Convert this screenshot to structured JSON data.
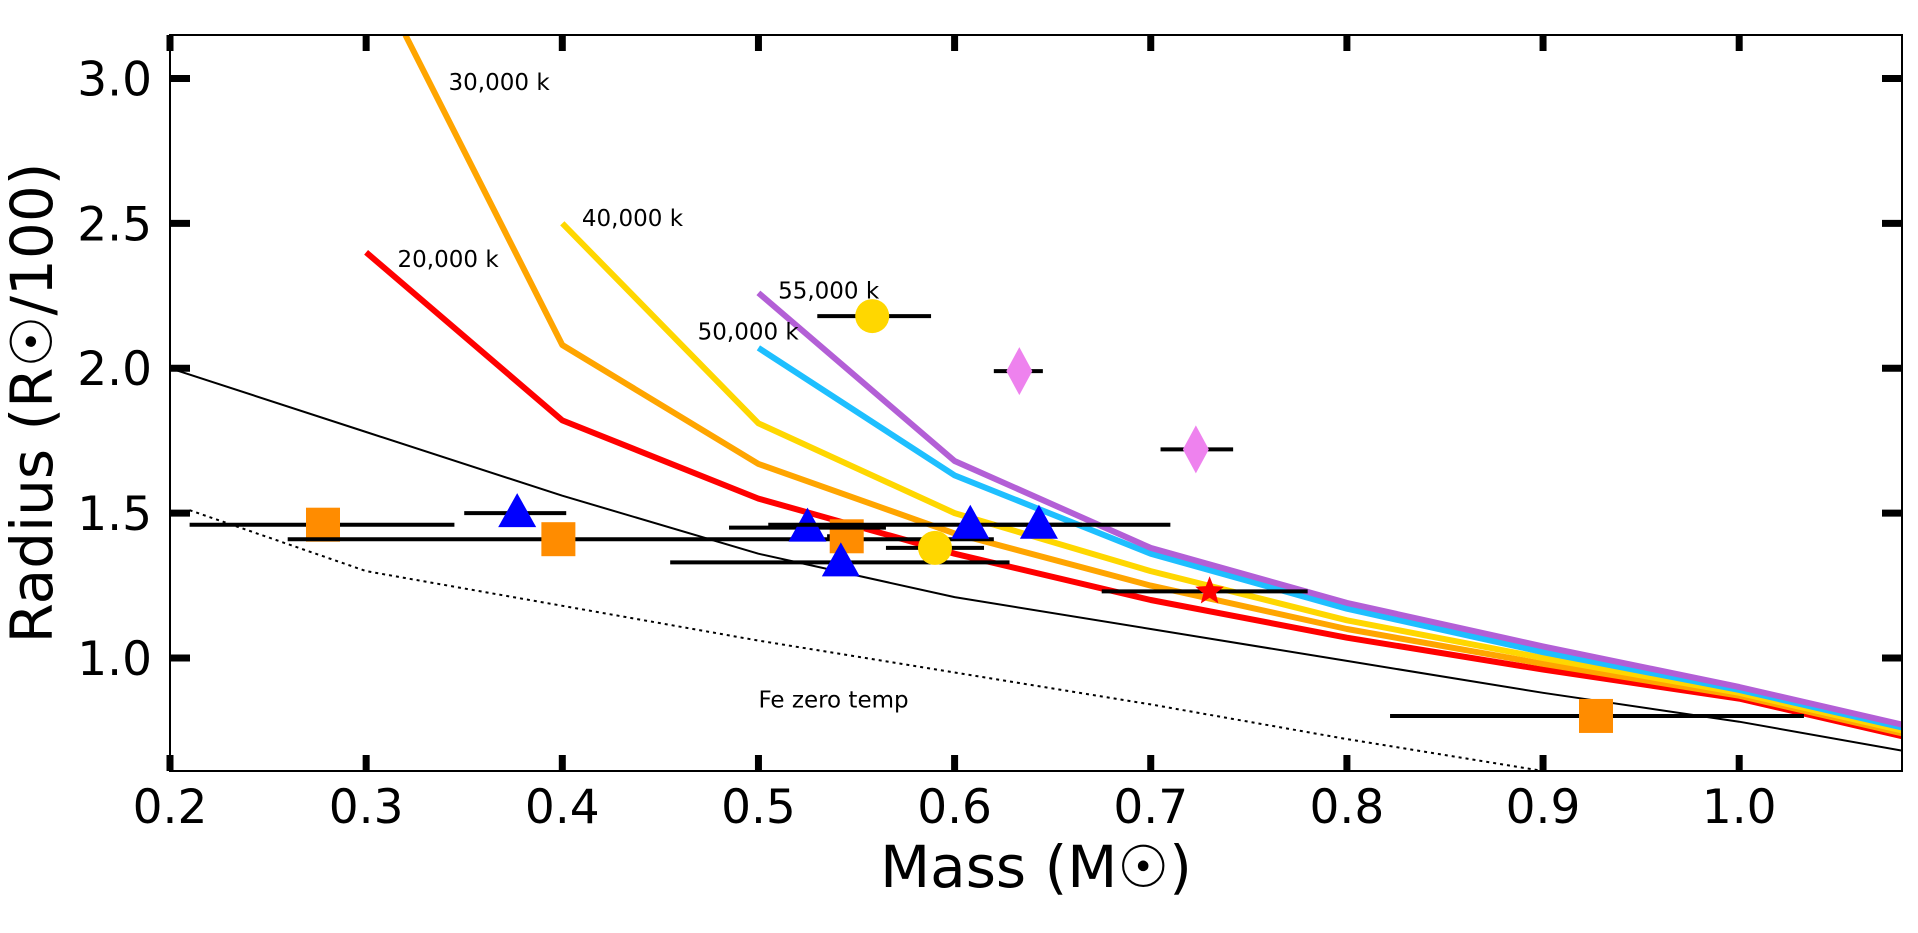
{
  "chart_data": {
    "type": "scatter",
    "xlabel": "Mass (M☉)",
    "ylabel": "Radius (R☉/100)",
    "xlim": [
      0.2,
      1.083
    ],
    "ylim": [
      0.61,
      3.15
    ],
    "x_ticks": [
      0.2,
      0.3,
      0.4,
      0.5,
      0.6,
      0.7,
      0.8,
      0.9,
      1.0
    ],
    "x_tick_labels": [
      "0.2",
      "0.3",
      "0.4",
      "0.5",
      "0.6",
      "0.7",
      "0.8",
      "0.9",
      "1.0"
    ],
    "y_ticks": [
      1.0,
      1.5,
      2.0,
      2.5,
      3.0
    ],
    "y_tick_labels": [
      "1.0",
      "1.5",
      "2.0",
      "2.5",
      "3.0"
    ],
    "grid": false,
    "curves": [
      {
        "name": "20,000 k",
        "color": "#ff0000",
        "width": 6,
        "dash": "",
        "x": [
          0.3,
          0.4,
          0.5,
          0.6,
          0.7,
          0.8,
          0.9,
          1.0,
          1.083
        ],
        "y": [
          2.4,
          1.82,
          1.55,
          1.36,
          1.2,
          1.07,
          0.96,
          0.86,
          0.73
        ]
      },
      {
        "name": "30,000 k",
        "color": "#ffa500",
        "width": 6,
        "dash": "",
        "x": [
          0.32,
          0.4,
          0.5,
          0.6,
          0.7,
          0.8,
          0.9,
          1.0,
          1.083
        ],
        "y": [
          3.15,
          2.08,
          1.67,
          1.43,
          1.25,
          1.1,
          0.98,
          0.87,
          0.74
        ]
      },
      {
        "name": "40,000 k",
        "color": "#ffd700",
        "width": 6,
        "dash": "",
        "x": [
          0.4,
          0.5,
          0.6,
          0.7,
          0.8,
          0.9,
          1.0,
          1.083
        ],
        "y": [
          2.5,
          1.81,
          1.5,
          1.3,
          1.13,
          1.0,
          0.88,
          0.75
        ]
      },
      {
        "name": "50,000 k",
        "color": "#1ebfff",
        "width": 6,
        "dash": "",
        "x": [
          0.5,
          0.6,
          0.7,
          0.8,
          0.9,
          1.0,
          1.083
        ],
        "y": [
          2.07,
          1.63,
          1.36,
          1.17,
          1.02,
          0.89,
          0.76
        ]
      },
      {
        "name": "55,000 k",
        "color": "#b35fd6",
        "width": 6,
        "dash": "",
        "x": [
          0.5,
          0.6,
          0.7,
          0.8,
          0.9,
          1.0,
          1.083
        ],
        "y": [
          2.26,
          1.68,
          1.38,
          1.19,
          1.04,
          0.9,
          0.77
        ]
      },
      {
        "name": "Fe zero temp",
        "color": "#000000",
        "width": 2,
        "dash": "3,4",
        "x": [
          0.21,
          0.3,
          0.4,
          0.5,
          0.6,
          0.7,
          0.8,
          0.9
        ],
        "y": [
          1.51,
          1.3,
          1.18,
          1.06,
          0.95,
          0.84,
          0.72,
          0.61
        ]
      },
      {
        "name": "zero temp",
        "color": "#000000",
        "width": 2,
        "dash": "",
        "x": [
          0.2,
          0.3,
          0.4,
          0.5,
          0.6,
          0.7,
          0.8,
          0.9,
          1.0,
          1.083
        ],
        "y": [
          2.0,
          1.78,
          1.56,
          1.36,
          1.21,
          1.1,
          0.99,
          0.88,
          0.78,
          0.68
        ]
      }
    ],
    "annotations": [
      {
        "text": "30,000 k",
        "x": 0.342,
        "y": 2.96
      },
      {
        "text": "40,000 k",
        "x": 0.41,
        "y": 2.49
      },
      {
        "text": "20,000 k",
        "x": 0.316,
        "y": 2.35
      },
      {
        "text": "55,000 k",
        "x": 0.51,
        "y": 2.24
      },
      {
        "text": "50,000 k",
        "x": 0.469,
        "y": 2.1
      },
      {
        "text": "Fe zero temp",
        "x": 0.5,
        "y": 0.83
      }
    ],
    "points": [
      {
        "shape": "square",
        "color": "#ff8c00",
        "x": 0.278,
        "y": 1.46,
        "xerr": [
          0.21,
          0.345
        ]
      },
      {
        "shape": "square",
        "color": "#ff8c00",
        "x": 0.398,
        "y": 1.41,
        "xerr": [
          0.26,
          0.62
        ]
      },
      {
        "shape": "square",
        "color": "#ff8c00",
        "x": 0.545,
        "y": 1.42,
        "xerr": [
          0.535,
          0.55
        ]
      },
      {
        "shape": "square",
        "color": "#ff8c00",
        "x": 0.927,
        "y": 0.8,
        "xerr": [
          0.822,
          1.033
        ]
      },
      {
        "shape": "triangle",
        "color": "#0000ff",
        "x": 0.377,
        "y": 1.5,
        "xerr": [
          0.35,
          0.402
        ]
      },
      {
        "shape": "triangle",
        "color": "#0000ff",
        "x": 0.525,
        "y": 1.45,
        "xerr": [
          0.485,
          0.565
        ]
      },
      {
        "shape": "triangle",
        "color": "#0000ff",
        "x": 0.542,
        "y": 1.33,
        "xerr": [
          0.455,
          0.628
        ]
      },
      {
        "shape": "triangle",
        "color": "#0000ff",
        "x": 0.608,
        "y": 1.46,
        "xerr": [
          0.505,
          0.71
        ]
      },
      {
        "shape": "triangle",
        "color": "#0000ff",
        "x": 0.643,
        "y": 1.46,
        "xerr": [
          0.62,
          0.665
        ]
      },
      {
        "shape": "circle",
        "color": "#ffd700",
        "x": 0.558,
        "y": 2.18,
        "xerr": [
          0.53,
          0.588
        ]
      },
      {
        "shape": "circle",
        "color": "#ffd700",
        "x": 0.59,
        "y": 1.38,
        "xerr": [
          0.565,
          0.615
        ]
      },
      {
        "shape": "diamond",
        "color": "#ee82ee",
        "x": 0.633,
        "y": 1.99,
        "xerr": [
          0.62,
          0.645
        ]
      },
      {
        "shape": "diamond",
        "color": "#ee82ee",
        "x": 0.723,
        "y": 1.72,
        "xerr": [
          0.705,
          0.742
        ]
      },
      {
        "shape": "star",
        "color": "#ff0000",
        "x": 0.73,
        "y": 1.23,
        "xerr": [
          0.675,
          0.78
        ]
      }
    ]
  }
}
